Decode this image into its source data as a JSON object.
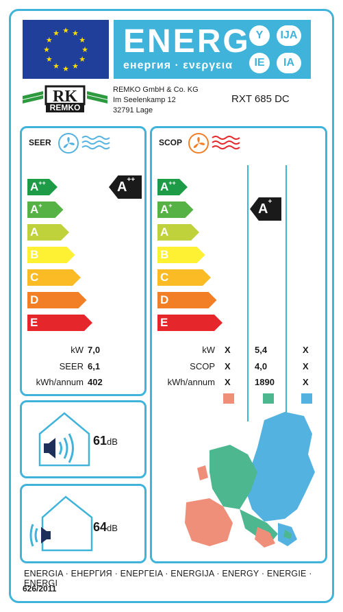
{
  "header": {
    "energ": "ENERG",
    "energ_sub": "енергия · ενεργεια",
    "lang_codes": [
      "Y",
      "IJA",
      "IE",
      "IA"
    ]
  },
  "supplier": {
    "brand": "REMKO",
    "address_lines": [
      "REMKO GmbH & Co. KG",
      "Im Seelenkamp 12",
      "32791 Lage"
    ],
    "model": "RXT 685 DC"
  },
  "classes": [
    "A++",
    "A+",
    "A",
    "B",
    "C",
    "D",
    "E"
  ],
  "class_colors": [
    "#1e9b47",
    "#56b245",
    "#bfd23c",
    "#fef032",
    "#fbbb24",
    "#f27f26",
    "#e5262a"
  ],
  "seer": {
    "title": "SEER",
    "rating": "A++",
    "rows": [
      {
        "label": "kW",
        "value": "7,0"
      },
      {
        "label": "SEER",
        "value": "6,1"
      },
      {
        "label": "kWh/annum",
        "value": "402"
      }
    ]
  },
  "scop": {
    "title": "SCOP",
    "rating": "A+",
    "rows": [
      {
        "label": "kW",
        "values": [
          "X",
          "5,4",
          "X"
        ]
      },
      {
        "label": "SCOP",
        "values": [
          "X",
          "4,0",
          "X"
        ]
      },
      {
        "label": "kWh/annum",
        "values": [
          "X",
          "1890",
          "X"
        ]
      }
    ],
    "zone_colors": [
      "#ef8f7a",
      "#4db88f",
      "#54b2e0"
    ]
  },
  "noise": {
    "indoor": {
      "value": "61",
      "unit": "dB"
    },
    "outdoor": {
      "value": "64",
      "unit": "dB"
    }
  },
  "footer": {
    "languages": "ENERGIA · ЕНЕРГИЯ · ΕΝΕΡΓΕΙΑ · ENERGIJA · ENERGY · ENERGIE · ENERGI",
    "regulation": "626/2011"
  }
}
